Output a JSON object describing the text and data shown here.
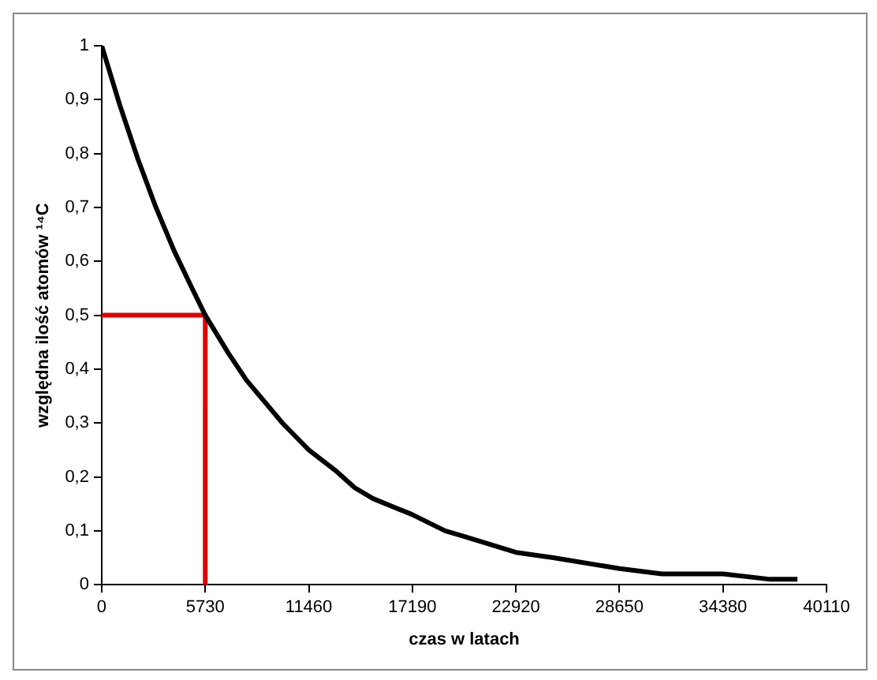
{
  "chart_data": {
    "type": "line",
    "xlabel": "czas w latach",
    "ylabel": "względna ilość atomów ¹⁴C",
    "xlim": [
      0,
      40110
    ],
    "xticks": [
      0,
      5730,
      11460,
      17190,
      22920,
      28650,
      34380,
      40110
    ],
    "ylim": [
      0,
      1
    ],
    "yticks": [
      0,
      {
        "value": 0.1,
        "label": "0,1"
      },
      {
        "value": 0.2,
        "label": "0,2"
      },
      {
        "value": 0.3,
        "label": "0,3"
      },
      {
        "value": 0.4,
        "label": "0,4"
      },
      {
        "value": 0.5,
        "label": "0,5"
      },
      {
        "value": 0.6,
        "label": "0,6"
      },
      {
        "value": 0.7,
        "label": "0,7"
      },
      {
        "value": 0.8,
        "label": "0,8"
      },
      {
        "value": 0.9,
        "label": "0,9"
      },
      1
    ],
    "grid": false,
    "legend": false,
    "marker": "none",
    "line_style": "solid",
    "series": [
      {
        "color": "#000000",
        "x": [
          0,
          1000,
          2000,
          3000,
          4000,
          5000,
          5730,
          7000,
          8000,
          9000,
          10000,
          11460,
          13000,
          14000,
          15000,
          17190,
          19000,
          20000,
          22920,
          25000,
          28650,
          31000,
          34380,
          37000,
          38500
        ],
        "values": [
          1,
          0.89,
          0.79,
          0.7,
          0.62,
          0.55,
          0.5,
          0.43,
          0.38,
          0.34,
          0.3,
          0.25,
          0.21,
          0.18,
          0.16,
          0.13,
          0.1,
          0.09,
          0.06,
          0.05,
          0.03,
          0.02,
          0.02,
          0.01,
          0.01
        ]
      },
      {
        "color": "#e00000",
        "x": [
          0,
          5730,
          5730
        ],
        "values": [
          0.5,
          0.5,
          0
        ]
      }
    ]
  }
}
